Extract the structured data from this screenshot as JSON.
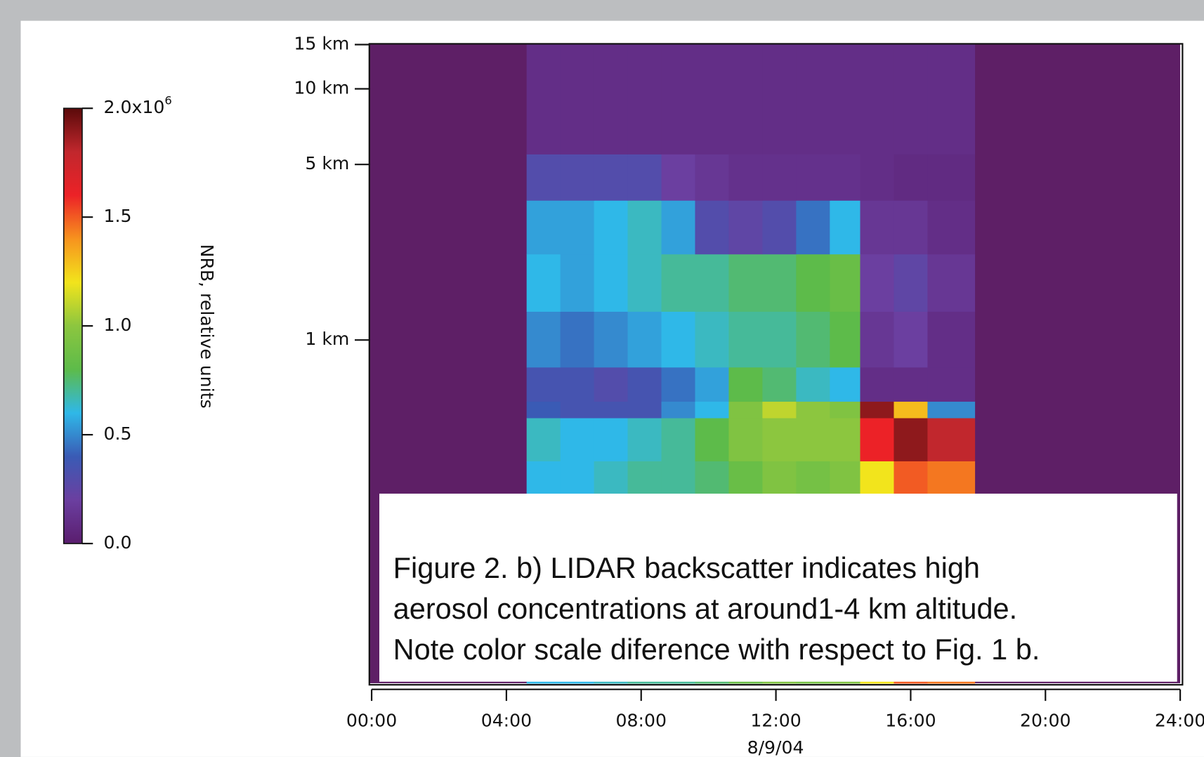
{
  "chart_data": {
    "type": "heatmap",
    "x_label": "8/9/04",
    "colorbar_label": "NRB, relative units",
    "caption": [
      "Figure 2. b) LIDAR backscatter indicates high",
      "aerosol concentrations at around1-4 km altitude.",
      "Note color scale diference with respect to Fig. 1 b."
    ],
    "xlim": [
      0,
      24
    ],
    "xticks": [
      {
        "value": 0,
        "label": "00:00"
      },
      {
        "value": 4,
        "label": "04:00"
      },
      {
        "value": 8,
        "label": "08:00"
      },
      {
        "value": 12,
        "label": "12:00"
      },
      {
        "value": 16,
        "label": "16:00"
      },
      {
        "value": 20,
        "label": "20:00"
      },
      {
        "value": 24,
        "label": "24:00"
      }
    ],
    "ylim": [
      0.043,
      15
    ],
    "y_log": true,
    "yticks": [
      {
        "value": 1,
        "label": "1 km"
      },
      {
        "value": 5,
        "label": "5 km"
      },
      {
        "value": 10,
        "label": "10 km"
      },
      {
        "value": 15,
        "label": "15 km"
      }
    ],
    "clim": [
      0,
      2000000
    ],
    "cticks": [
      {
        "value": 0,
        "label": "0.0"
      },
      {
        "value": 500000,
        "label": "0.5"
      },
      {
        "value": 1000000,
        "label": "1.0"
      },
      {
        "value": 1500000,
        "label": "1.5"
      },
      {
        "value": 2000000,
        "label": "2.0x10",
        "exponent": "6"
      }
    ],
    "colorscale": [
      "#5a1d6e",
      "#6b3fa0",
      "#3a5bb5",
      "#2fb8e8",
      "#5dbb4a",
      "#8cc63f",
      "#f2e41c",
      "#f7931e",
      "#ec2227",
      "#c1272d",
      "#5a0a0a"
    ],
    "background_color": "#5e1f66",
    "x_edges": [
      4.6,
      5.6,
      6.6,
      7.6,
      8.6,
      9.6,
      10.6,
      11.6,
      12.6,
      13.6,
      14.5,
      15.5,
      16.5,
      17.9
    ],
    "y_edges": [
      0.043,
      0.33,
      0.49,
      0.57,
      0.78,
      1.3,
      2.2,
      3.6,
      5.5,
      15
    ],
    "values": [
      [
        600000,
        600000,
        650000,
        700000,
        700000,
        750000,
        850000,
        950000,
        900000,
        950000,
        1200000,
        1500000,
        1450000
      ],
      [
        650000,
        600000,
        600000,
        650000,
        700000,
        800000,
        950000,
        1000000,
        1000000,
        1000000,
        1600000,
        1900000,
        1800000
      ],
      [
        400000,
        350000,
        350000,
        350000,
        500000,
        600000,
        950000,
        1100000,
        1000000,
        950000,
        1900000,
        1300000,
        500000
      ],
      [
        350000,
        350000,
        300000,
        350000,
        450000,
        550000,
        800000,
        750000,
        650000,
        600000,
        100000,
        100000,
        100000
      ],
      [
        500000,
        450000,
        500000,
        550000,
        600000,
        650000,
        700000,
        700000,
        750000,
        800000,
        150000,
        200000,
        100000
      ],
      [
        600000,
        550000,
        600000,
        650000,
        700000,
        700000,
        750000,
        750000,
        800000,
        850000,
        200000,
        250000,
        150000
      ],
      [
        550000,
        550000,
        600000,
        650000,
        550000,
        300000,
        250000,
        300000,
        450000,
        600000,
        150000,
        150000,
        100000
      ],
      [
        300000,
        300000,
        300000,
        300000,
        200000,
        150000,
        120000,
        120000,
        120000,
        120000,
        100000,
        80000,
        80000
      ],
      [
        100000,
        100000,
        100000,
        100000,
        100000,
        100000,
        100000,
        100000,
        100000,
        100000,
        100000,
        100000,
        100000
      ]
    ]
  }
}
